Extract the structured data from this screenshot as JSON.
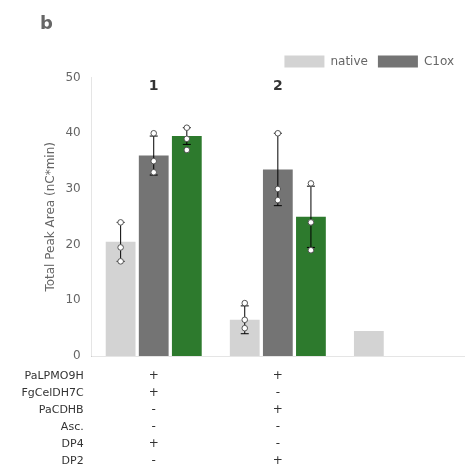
{
  "chart_data": {
    "type": "bar",
    "title": "b",
    "ylabel": "Total Peak Area (nC*min)",
    "categories": [
      "1",
      "2",
      null
    ],
    "series": [
      {
        "name": "native",
        "color": "#d3d3d3",
        "values": [
          20.5,
          6.5,
          4.5
        ],
        "errors": [
          3.5,
          2.5,
          0
        ],
        "dots": [
          [
            17.0,
            19.5,
            24.0
          ],
          [
            5.0,
            6.5,
            9.5
          ],
          []
        ]
      },
      {
        "name": "C1ox",
        "color": "#747474",
        "values": [
          36.0,
          33.5,
          0
        ],
        "errors": [
          3.5,
          6.5,
          0
        ],
        "dots": [
          [
            33.0,
            35.0,
            40.0
          ],
          [
            28.0,
            30.0,
            40.0
          ],
          []
        ]
      },
      {
        "color": "#2d7a2d",
        "values": [
          39.5,
          25.0,
          0
        ],
        "errors": [
          1.5,
          5.5,
          0
        ],
        "dots": [
          [
            37.0,
            39.0,
            41.0
          ],
          [
            19.0,
            24.0,
            31.0
          ],
          []
        ]
      }
    ],
    "ylim": [
      0,
      50
    ],
    "yticks": [
      0,
      10,
      20,
      30,
      40,
      50
    ],
    "grid": false,
    "legend": "upper right",
    "table": {
      "rows": [
        "PaLPMO9H",
        "FgCelDH7C",
        "PaCDHB",
        "Asc.",
        "DP4",
        "DP2"
      ],
      "columns": [
        [
          "+",
          "+",
          "-",
          "-",
          "+",
          "-"
        ],
        [
          "+",
          "-",
          "+",
          "-",
          "-",
          "+"
        ]
      ]
    }
  }
}
